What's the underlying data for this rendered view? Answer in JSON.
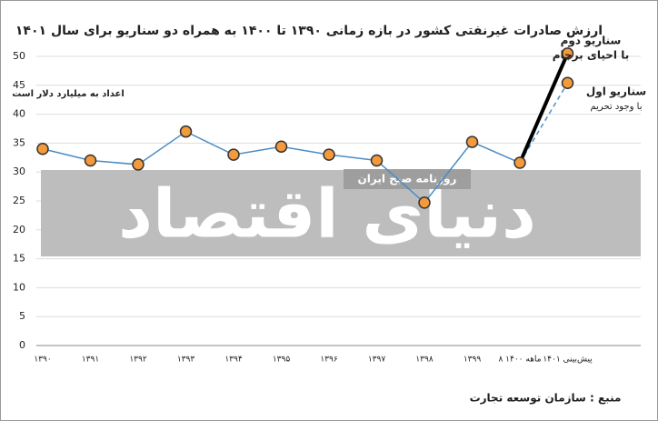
{
  "watermark": "دنیای اقتصاد",
  "watermark_tag": "روزنامه صبح ایران",
  "chart_data": {
    "type": "line",
    "title": "ارزش صادرات غیرنفتی کشور در بازه زمانی ۱۳۹۰ تا ۱۴۰۰ به همراه دو سناریو برای سال ۱۴۰۱",
    "annotation": "اعداد به میلیارد دلار است",
    "source": "منبع : سازمان توسعه تجارت",
    "categories": [
      "۱۳۹۰",
      "۱۳۹۱",
      "۱۳۹۲",
      "۱۳۹۳",
      "۱۳۹۴",
      "۱۳۹۵",
      "۱۳۹۶",
      "۱۳۹۷",
      "۱۳۹۸",
      "۱۳۹۹",
      "۸ ماهه ۱۴۰۰",
      "پیش‌بینی ۱۴۰۱"
    ],
    "series": [
      {
        "color": "#4a8cc4",
        "style": "solid",
        "values": [
          34,
          32,
          31.3,
          37,
          33,
          34.4,
          33,
          32,
          24.7,
          35.2,
          31.6,
          null
        ]
      },
      {
        "name": "سناریو دوم",
        "note": "با احیای برجام",
        "color": "#000000",
        "style": "thick",
        "values": [
          null,
          null,
          null,
          null,
          null,
          null,
          null,
          null,
          null,
          null,
          31.6,
          50.5
        ]
      },
      {
        "name": "سناریو اول",
        "note": "با وجود تحریم",
        "color": "#4a8cc4",
        "style": "dashed",
        "values": [
          null,
          null,
          null,
          null,
          null,
          null,
          null,
          null,
          null,
          null,
          31.6,
          45.4
        ]
      }
    ],
    "marker_color": "#f39a3c",
    "ylim": [
      0,
      50
    ],
    "yticks": [
      0,
      5,
      10,
      15,
      20,
      25,
      30,
      35,
      40,
      45,
      50
    ],
    "grid": true
  }
}
